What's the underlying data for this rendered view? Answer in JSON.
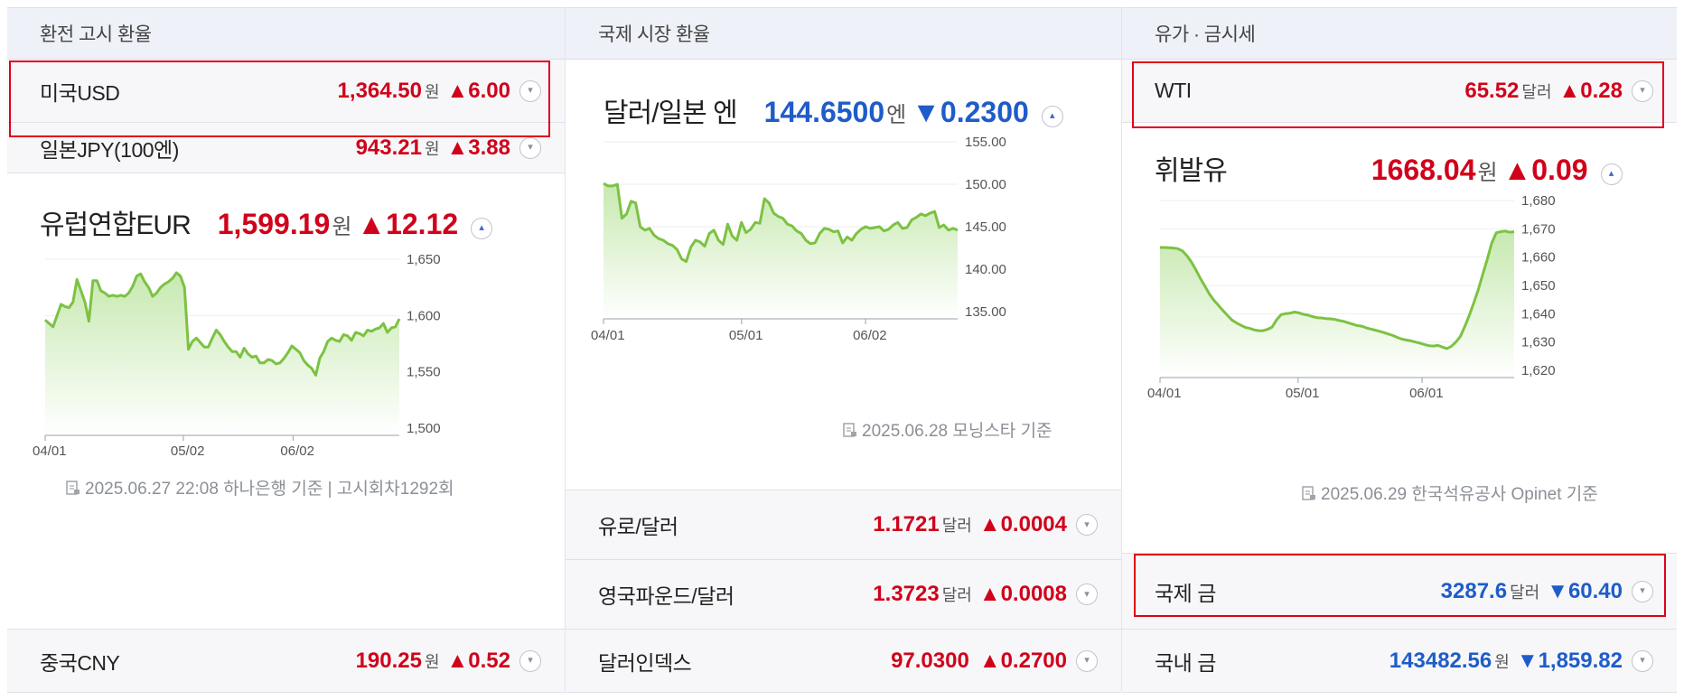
{
  "columns": [
    {
      "title": "환전 고시 환율"
    },
    {
      "title": "국제 시장 환율"
    },
    {
      "title": "유가 · 금시세"
    }
  ],
  "col1": {
    "usd": {
      "name": "미국USD",
      "value": "1,364.50",
      "unit": "원",
      "change": "▲6.00",
      "dir": "up"
    },
    "jpy": {
      "name": "일본JPY(100엔)",
      "value": "943.21",
      "unit": "원",
      "change": "▲3.88",
      "dir": "up"
    },
    "eur": {
      "name": "유럽연합EUR",
      "value": "1,599.19",
      "unit": "원",
      "change": "▲12.12",
      "dir": "up"
    },
    "source": "2025.06.27 22:08 하나은행 기준 | 고시회차1292회",
    "cny": {
      "name": "중국CNY",
      "value": "190.25",
      "unit": "원",
      "change": "▲0.52",
      "dir": "up"
    }
  },
  "col2": {
    "jpy": {
      "name": "달러/일본 엔",
      "value": "144.6500",
      "unit": "엔",
      "change": "▼0.2300",
      "dir": "down"
    },
    "source": "2025.06.28 모닝스타 기준",
    "eurusd": {
      "name": "유로/달러",
      "value": "1.1721",
      "unit": "달러",
      "change": "▲0.0004",
      "dir": "up"
    },
    "gbpusd": {
      "name": "영국파운드/달러",
      "value": "1.3723",
      "unit": "달러",
      "change": "▲0.0008",
      "dir": "up"
    },
    "dxy": {
      "name": "달러인덱스",
      "value": "97.0300",
      "unit": "",
      "change": "▲0.2700",
      "dir": "up"
    }
  },
  "col3": {
    "wti": {
      "name": "WTI",
      "value": "65.52",
      "unit": "달러",
      "change": "▲0.28",
      "dir": "up"
    },
    "gasoline": {
      "name": "휘발유",
      "value": "1668.04",
      "unit": "원",
      "change": "▲0.09",
      "dir": "up"
    },
    "source": "2025.06.29 한국석유공사 Opinet 기준",
    "intl_gold": {
      "name": "국제 금",
      "value": "3287.6",
      "unit": "달러",
      "change": "▼60.40",
      "dir": "down"
    },
    "dom_gold": {
      "name": "국내 금",
      "value": "143482.56",
      "unit": "원",
      "change": "▼1,859.82",
      "dir": "down"
    }
  },
  "colors": {
    "up": "#d0021b",
    "down": "#1f5cc9",
    "line": "#7cc242",
    "highlight": "#e1001a"
  },
  "chart_data": [
    {
      "type": "area",
      "title": "유럽연합EUR",
      "x_ticks": [
        "04/01",
        "05/02",
        "06/02"
      ],
      "y_ticks": [
        "1,650",
        "1,600",
        "1,550",
        "1,500"
      ],
      "ylim": [
        1500,
        1650
      ],
      "y": [
        1596,
        1593,
        1590,
        1600,
        1610,
        1608,
        1607,
        1612,
        1632,
        1622,
        1612,
        1595,
        1631,
        1631,
        1622,
        1620,
        1617,
        1618,
        1617,
        1618,
        1617,
        1620,
        1626,
        1635,
        1637,
        1630,
        1625,
        1617,
        1620,
        1625,
        1628,
        1630,
        1633,
        1638,
        1635,
        1625,
        1570,
        1577,
        1580,
        1576,
        1572,
        1572,
        1580,
        1587,
        1583,
        1577,
        1572,
        1568,
        1568,
        1563,
        1571,
        1566,
        1563,
        1564,
        1558,
        1558,
        1561,
        1560,
        1557,
        1558,
        1562,
        1567,
        1573,
        1570,
        1567,
        1560,
        1556,
        1553,
        1547,
        1562,
        1568,
        1577,
        1580,
        1578,
        1577,
        1583,
        1582,
        1578,
        1585,
        1584,
        1582,
        1587,
        1586,
        1588,
        1589,
        1593,
        1585,
        1589,
        1590,
        1597
      ]
    },
    {
      "type": "area",
      "title": "달러/일본 엔",
      "x_ticks": [
        "04/01",
        "05/01",
        "06/02"
      ],
      "y_ticks": [
        "155.00",
        "150.00",
        "145.00",
        "140.00",
        "135.00"
      ],
      "ylim": [
        135,
        155
      ],
      "y": [
        150.1,
        149.8,
        149.8,
        150.0,
        146.0,
        146.5,
        148.0,
        147.8,
        145.0,
        144.6,
        144.8,
        144.0,
        143.6,
        143.4,
        143.0,
        142.8,
        142.3,
        141.2,
        140.9,
        142.6,
        143.4,
        143.2,
        142.7,
        144.2,
        144.6,
        143.4,
        142.9,
        145.3,
        143.9,
        143.4,
        145.5,
        144.3,
        144.7,
        145.5,
        145.4,
        148.3,
        147.8,
        146.6,
        146.2,
        146.0,
        145.3,
        145.1,
        144.5,
        144.2,
        143.4,
        143.0,
        143.1,
        144.2,
        144.8,
        144.7,
        144.4,
        144.5,
        143.1,
        143.8,
        143.4,
        144.2,
        144.7,
        145.0,
        144.8,
        144.9,
        145.0,
        144.5,
        144.7,
        145.2,
        145.5,
        144.8,
        144.9,
        145.8,
        146.1,
        146.5,
        146.3,
        146.6,
        146.8,
        144.9,
        145.2,
        144.6,
        144.8,
        144.6
      ]
    },
    {
      "type": "area",
      "title": "휘발유",
      "x_ticks": [
        "04/01",
        "05/01",
        "06/01"
      ],
      "y_ticks": [
        "1,680",
        "1,670",
        "1,660",
        "1,650",
        "1,640",
        "1,630",
        "1,620"
      ],
      "ylim": [
        1620,
        1680
      ],
      "y": [
        1663.4,
        1663.4,
        1663.3,
        1663.2,
        1663.0,
        1662.2,
        1660.5,
        1658.3,
        1655.5,
        1652.5,
        1649.8,
        1647.0,
        1644.8,
        1643.0,
        1641.2,
        1639.5,
        1637.8,
        1636.8,
        1636.0,
        1635.2,
        1634.8,
        1634.3,
        1634.0,
        1634.0,
        1634.5,
        1635.3,
        1637.8,
        1639.7,
        1640.0,
        1640.2,
        1640.6,
        1640.3,
        1639.8,
        1639.5,
        1639.0,
        1638.6,
        1638.5,
        1638.3,
        1638.2,
        1638.0,
        1637.6,
        1637.3,
        1636.8,
        1636.3,
        1635.8,
        1635.6,
        1635.0,
        1634.6,
        1634.2,
        1633.8,
        1633.3,
        1632.8,
        1632.3,
        1631.6,
        1631.0,
        1630.7,
        1630.4,
        1630.0,
        1629.6,
        1629.1,
        1628.7,
        1628.6,
        1628.8,
        1628.2,
        1627.7,
        1628.5,
        1630.0,
        1632.0,
        1635.5,
        1639.5,
        1643.8,
        1648.5,
        1654.0,
        1659.2,
        1665.0,
        1668.6,
        1669.0,
        1669.2,
        1668.8,
        1669.0
      ]
    }
  ]
}
